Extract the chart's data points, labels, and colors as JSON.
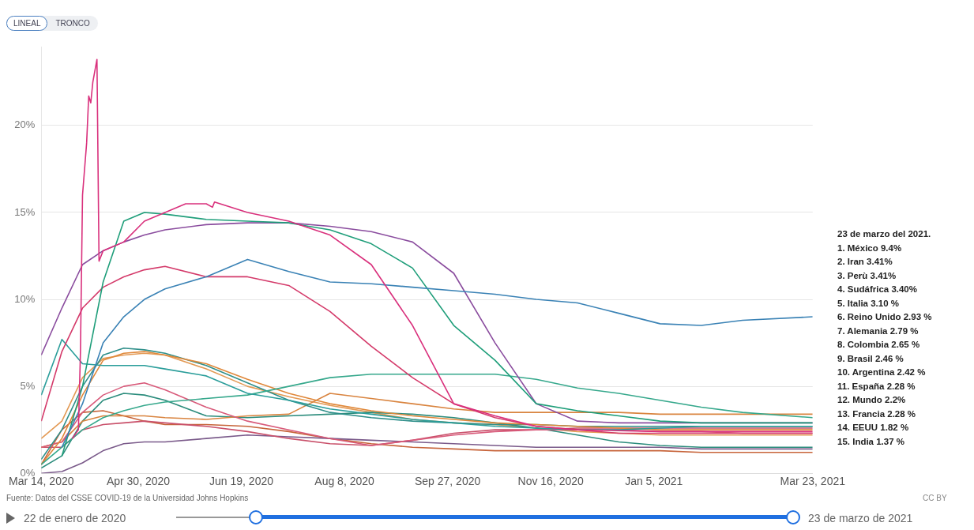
{
  "chart_data": {
    "type": "line",
    "grid": "y",
    "legend": false,
    "marker": "none",
    "line_style": "solid",
    "xlim": [
      "2020-03-14",
      "2021-03-23"
    ],
    "xticks": [
      {
        "value": "2020-03-14",
        "label": "Mar 14, 2020"
      },
      {
        "value": "2020-04-30",
        "label": "Apr 30, 2020"
      },
      {
        "value": "2020-06-19",
        "label": "Jun 19, 2020"
      },
      {
        "value": "2020-08-08",
        "label": "Aug 8, 2020"
      },
      {
        "value": "2020-09-27",
        "label": "Sep 27, 2020"
      },
      {
        "value": "2020-11-16",
        "label": "Nov 16, 2020"
      },
      {
        "value": "2021-01-05",
        "label": "Jan 5, 2021"
      },
      {
        "value": "2021-03-23",
        "label": "Mar 23, 2021"
      }
    ],
    "ylim": [
      0,
      24.5
    ],
    "yticks": [
      {
        "value": 0,
        "label": "0%"
      },
      {
        "value": 5,
        "label": "5%"
      },
      {
        "value": 10,
        "label": "10%"
      },
      {
        "value": 15,
        "label": "15%"
      },
      {
        "value": 20,
        "label": "20%"
      }
    ],
    "x": [
      "2020-03-14",
      "2020-03-24",
      "2020-04-03",
      "2020-04-13",
      "2020-04-23",
      "2020-05-03",
      "2020-05-13",
      "2020-06-02",
      "2020-06-22",
      "2020-07-12",
      "2020-08-01",
      "2020-08-21",
      "2020-09-10",
      "2020-09-30",
      "2020-10-20",
      "2020-11-09",
      "2020-11-29",
      "2020-12-19",
      "2021-01-08",
      "2021-01-28",
      "2021-02-17",
      "2021-03-23"
    ],
    "series": [
      {
        "color": "#d9307c",
        "x": [
          "2020-03-29",
          "2020-04-01",
          "2020-04-02",
          "2020-04-03",
          "2020-04-05",
          "2020-04-06",
          "2020-04-07",
          "2020-04-08",
          "2020-04-10",
          "2020-04-11",
          "2020-04-13",
          "2020-04-23",
          "2020-05-03",
          "2020-05-13",
          "2020-05-23",
          "2020-06-02",
          "2020-06-05",
          "2020-06-06",
          "2020-06-22",
          "2020-07-12",
          "2020-08-01",
          "2020-08-21",
          "2020-09-10",
          "2020-09-30",
          "2020-10-20",
          "2020-11-09",
          "2020-11-29",
          "2021-01-08",
          "2021-03-23"
        ],
        "values": [
          2.0,
          2.5,
          7.0,
          16.0,
          19.0,
          21.7,
          21.3,
          22.5,
          23.8,
          12.2,
          12.8,
          13.3,
          14.5,
          15.0,
          15.5,
          15.5,
          15.3,
          15.6,
          15.0,
          14.5,
          13.7,
          12.0,
          8.5,
          4.0,
          3.3,
          2.7,
          2.5,
          2.4,
          2.4
        ]
      },
      {
        "color": "#3a82b5",
        "values": [
          null,
          1.5,
          4.0,
          7.5,
          9.0,
          10.0,
          10.6,
          11.3,
          12.3,
          11.6,
          11.0,
          10.9,
          10.7,
          10.5,
          10.3,
          10.0,
          9.8,
          9.2,
          8.6,
          8.5,
          8.8,
          9.0
        ]
      },
      {
        "color": "#1f9e7a",
        "values": [
          null,
          1.0,
          5.0,
          11.0,
          14.5,
          15.0,
          14.9,
          14.6,
          14.5,
          14.4,
          14.0,
          13.2,
          11.8,
          8.5,
          6.5,
          4.0,
          3.6,
          3.3,
          3.0,
          2.9,
          2.9,
          2.9
        ]
      },
      {
        "color": "#8a4c9e",
        "values": [
          6.8,
          9.5,
          12.0,
          12.8,
          13.3,
          13.7,
          14.0,
          14.3,
          14.4,
          14.4,
          14.2,
          13.9,
          13.3,
          11.5,
          7.5,
          4.0,
          3.0,
          2.9,
          2.9,
          2.9,
          2.9,
          2.9
        ]
      },
      {
        "color": "#d43a6a",
        "values": [
          3.0,
          7.0,
          9.5,
          10.7,
          11.3,
          11.7,
          11.9,
          11.3,
          11.3,
          10.8,
          9.3,
          7.3,
          5.5,
          4.0,
          3.2,
          2.7,
          2.5,
          2.3,
          2.3,
          2.3,
          2.3,
          2.3
        ]
      },
      {
        "color": "#2a9d9a",
        "values": [
          4.5,
          7.7,
          6.3,
          6.2,
          6.2,
          6.2,
          6.0,
          5.6,
          4.6,
          4.2,
          3.7,
          3.4,
          3.1,
          2.9,
          2.7,
          2.6,
          2.5,
          2.5,
          2.6,
          2.7,
          2.7,
          2.7
        ]
      },
      {
        "color": "#36a88c",
        "values": [
          0.5,
          1.5,
          2.5,
          3.2,
          3.6,
          3.9,
          4.1,
          4.3,
          4.5,
          5.0,
          5.5,
          5.7,
          5.7,
          5.7,
          5.7,
          5.4,
          4.9,
          4.6,
          4.2,
          3.8,
          3.5,
          3.2
        ]
      },
      {
        "color": "#e0883a",
        "values": [
          0.5,
          2.0,
          4.5,
          6.5,
          6.9,
          7.0,
          6.8,
          6.3,
          5.4,
          4.6,
          4.0,
          3.6,
          3.3,
          3.1,
          2.9,
          2.8,
          2.7,
          2.6,
          2.5,
          2.5,
          2.5,
          2.5
        ]
      },
      {
        "color": "#2f8f8a",
        "values": [
          0.8,
          2.5,
          5.0,
          6.8,
          7.2,
          7.1,
          6.9,
          6.2,
          5.2,
          4.2,
          3.5,
          3.2,
          3.0,
          2.9,
          2.8,
          2.8,
          2.7,
          2.7,
          2.7,
          2.7,
          2.7,
          2.7
        ]
      },
      {
        "color": "#d85a7a",
        "values": [
          1.5,
          1.8,
          3.5,
          4.5,
          5.0,
          5.2,
          4.8,
          3.8,
          3.0,
          2.5,
          2.0,
          1.6,
          1.9,
          2.2,
          2.4,
          2.5,
          2.5,
          2.5,
          2.4,
          2.4,
          2.3,
          2.3
        ]
      },
      {
        "color": "#d9843f",
        "values": [
          1.5,
          1.8,
          3.0,
          3.3,
          3.3,
          3.3,
          3.2,
          3.1,
          3.3,
          3.4,
          4.6,
          4.3,
          4.0,
          3.7,
          3.5,
          3.5,
          3.5,
          3.5,
          3.4,
          3.4,
          3.4,
          3.4
        ]
      },
      {
        "color": "#2b8c7c",
        "values": [
          0.3,
          1.0,
          3.0,
          4.2,
          4.6,
          4.5,
          4.2,
          3.3,
          3.2,
          3.3,
          3.4,
          3.5,
          3.4,
          3.2,
          2.9,
          2.6,
          2.2,
          1.8,
          1.6,
          1.5,
          1.5,
          1.5
        ]
      },
      {
        "color": "#c9506a",
        "values": [
          1.5,
          1.5,
          2.5,
          2.8,
          2.9,
          3.0,
          2.9,
          2.7,
          2.4,
          2.0,
          1.7,
          1.6,
          1.9,
          2.3,
          2.5,
          2.5,
          2.6,
          2.6,
          2.6,
          2.6,
          2.6,
          2.6
        ]
      },
      {
        "color": "#7a5a8a",
        "values": [
          0.0,
          0.1,
          0.6,
          1.3,
          1.7,
          1.8,
          1.8,
          2.0,
          2.2,
          2.1,
          2.0,
          1.9,
          1.8,
          1.7,
          1.6,
          1.5,
          1.5,
          1.5,
          1.5,
          1.4,
          1.4,
          1.4
        ]
      },
      {
        "color": "#e39a55",
        "values": [
          2.0,
          3.0,
          5.5,
          6.6,
          6.8,
          6.9,
          6.8,
          6.0,
          5.0,
          4.4,
          3.9,
          3.5,
          3.1,
          2.9,
          2.8,
          2.6,
          2.4,
          2.3,
          2.2,
          2.2,
          2.2,
          2.2
        ]
      },
      {
        "color": "#c7643a",
        "values": [
          0.5,
          2.5,
          3.5,
          3.6,
          3.3,
          3.0,
          2.8,
          2.8,
          2.7,
          2.4,
          2.0,
          1.7,
          1.5,
          1.4,
          1.3,
          1.3,
          1.3,
          1.3,
          1.3,
          1.2,
          1.2,
          1.2
        ]
      }
    ],
    "annotations": [
      "LINEAL",
      "TRONCO",
      "23 de marzo del 2021.",
      "1. México 9.4%",
      "2. Iran 3.41%",
      "3. Perù 3.41%",
      "4. Sudáfrica 3.40%",
      "5. Italia 3.10 %",
      "6. Reino Unido 2.93 %",
      "7. Alemania 2.79 %",
      "8. Colombia 2.65 %",
      "9. Brasil 2.46 %",
      "10. Argentina 2.42 %",
      "11. España 2.28 %",
      "12. Mundo 2.2%",
      "13. Francia 2.28 %",
      "14. EEUU 1.82 %",
      "15. India 1.37 %",
      "Fuente: Datos del CSSE COVID-19 de la Universidad Johns Hopkins",
      "CC BY",
      "22 de enero de 2020",
      "23 de marzo de 2021"
    ]
  }
}
